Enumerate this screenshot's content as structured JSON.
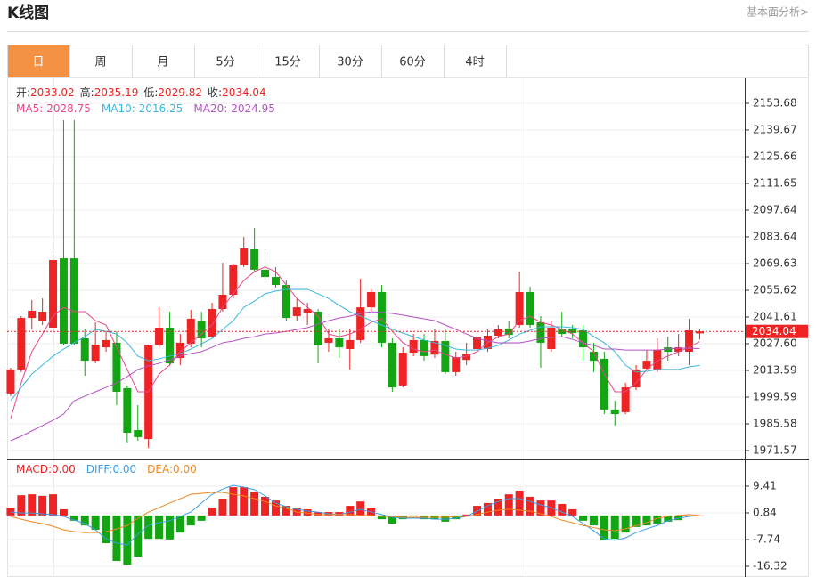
{
  "header": {
    "title": "K线图",
    "link": "基本面分析>"
  },
  "tabs": {
    "items": [
      "日",
      "周",
      "月",
      "5分",
      "15分",
      "30分",
      "60分",
      "4时"
    ],
    "active": 0
  },
  "chart_data": [
    {
      "type": "candlestick",
      "ohlc_labels": [
        "开:",
        "高:",
        "低:",
        "收:"
      ],
      "up_color": "#ee2323",
      "down_color": "#14a514",
      "open": [
        2001.5,
        2014.1,
        2041.1,
        2039.7,
        2036.0,
        2072.4,
        2072.4,
        2030.4,
        2018.7,
        2025.7,
        2028.1,
        2004.3,
        1982.3,
        1977.6,
        2027.1,
        2036.0,
        2020.1,
        2027.6,
        2039.7,
        2031.3,
        2045.8,
        2053.3,
        2068.7,
        2077.1,
        2066.4,
        2062.6,
        2058.4,
        2042.1,
        2043.5,
        2044.4,
        2028.1,
        2030.4,
        2024.8,
        2029.5,
        2046.7,
        2054.7,
        2028.1,
        2005.7,
        2022.9,
        2029.5,
        2021.9,
        2029.0,
        2012.7,
        2019.1,
        2024.8,
        2024.8,
        2031.8,
        2035.6,
        2037.4,
        2054.7,
        2038.8,
        2024.8,
        2035.1,
        2035.1,
        2034.6,
        2023.4,
        2019.7,
        1993.1,
        1991.7,
        2004.7,
        2014.6,
        2014.1,
        2025.7,
        2023.4,
        2023.4,
        2033.02
      ],
      "high": [
        2015.0,
        2042.1,
        2050.5,
        2051.4,
        2074.3,
        2144.8,
        2144.8,
        2035.1,
        2038.8,
        2034.1,
        2034.1,
        2005.7,
        1995.4,
        2027.1,
        2046.7,
        2044.4,
        2032.7,
        2045.3,
        2044.4,
        2049.1,
        2070.1,
        2069.6,
        2083.6,
        2088.3,
        2075.7,
        2067.8,
        2060.8,
        2051.4,
        2049.1,
        2045.8,
        2035.1,
        2035.1,
        2035.1,
        2061.7,
        2056.1,
        2058.4,
        2030.4,
        2025.7,
        2032.7,
        2032.7,
        2035.1,
        2035.1,
        2023.4,
        2028.1,
        2036.0,
        2035.1,
        2037.4,
        2039.7,
        2065.4,
        2057.5,
        2042.1,
        2039.7,
        2044.4,
        2037.4,
        2037.4,
        2028.1,
        2023.4,
        1997.7,
        2007.1,
        2016.4,
        2024.3,
        2030.4,
        2031.3,
        2032.7,
        2040.7,
        2035.19
      ],
      "low": [
        2000.1,
        2012.7,
        2035.1,
        2037.4,
        2035.1,
        2026.7,
        2026.7,
        2010.8,
        2017.3,
        2023.4,
        1995.4,
        1975.8,
        1976.7,
        1972.9,
        2025.7,
        2016.4,
        2016.4,
        2025.7,
        2025.7,
        2030.4,
        2044.4,
        2051.4,
        2067.8,
        2065.0,
        2059.4,
        2057.0,
        2039.7,
        2039.7,
        2037.4,
        2017.3,
        2023.4,
        2020.1,
        2014.1,
        2028.1,
        2044.4,
        2025.7,
        2002.4,
        2004.7,
        2021.1,
        2018.7,
        2020.1,
        2011.7,
        2010.8,
        2016.4,
        2023.4,
        2023.4,
        2030.4,
        2030.4,
        2036.0,
        2036.0,
        2015.0,
        2023.4,
        2031.3,
        2030.4,
        2018.7,
        2012.7,
        1990.7,
        1984.7,
        1990.7,
        2003.3,
        2014.1,
        2012.7,
        2018.7,
        2021.1,
        2016.4,
        2029.82
      ],
      "close": [
        2014.1,
        2041.1,
        2044.9,
        2044.4,
        2071.5,
        2027.6,
        2027.6,
        2018.7,
        2027.1,
        2029.5,
        2002.4,
        1980.9,
        1978.6,
        2026.7,
        2036.0,
        2017.3,
        2028.1,
        2040.7,
        2030.4,
        2045.8,
        2053.3,
        2068.7,
        2077.6,
        2066.4,
        2062.6,
        2058.4,
        2041.1,
        2046.7,
        2045.8,
        2026.7,
        2030.4,
        2025.7,
        2029.5,
        2046.7,
        2054.7,
        2028.1,
        2004.7,
        2022.9,
        2029.5,
        2021.1,
        2029.0,
        2012.7,
        2020.6,
        2022.4,
        2031.3,
        2031.8,
        2035.1,
        2032.2,
        2054.7,
        2037.4,
        2028.1,
        2036.0,
        2032.7,
        2033.2,
        2025.7,
        2018.7,
        1993.1,
        1990.7,
        2004.7,
        2014.1,
        2018.7,
        2024.3,
        2023.4,
        2025.7,
        2034.6,
        2034.04
      ],
      "series": [
        {
          "name": "MA5:",
          "color": "#e8478b",
          "values": [
            1988.4,
            2007.1,
            2023.4,
            2032.7,
            2042.1,
            2046.7,
            2044.4,
            2044.4,
            2039.7,
            2037.4,
            2025.7,
            2014.1,
            2002.4,
            2002.4,
            2011.7,
            2016.4,
            2023.4,
            2028.1,
            2032.7,
            2037.4,
            2046.7,
            2053.8,
            2060.8,
            2065.4,
            2067.8,
            2065.4,
            2058.4,
            2051.4,
            2046.7,
            2042.1,
            2032.7,
            2031.3,
            2032.7,
            2035.1,
            2038.8,
            2040.7,
            2034.1,
            2028.1,
            2024.8,
            2023.4,
            2024.3,
            2022.0,
            2020.1,
            2021.1,
            2023.4,
            2028.1,
            2031.3,
            2032.7,
            2039.7,
            2042.1,
            2038.8,
            2037.4,
            2035.1,
            2032.7,
            2028.1,
            2023.4,
            2011.7,
            2002.4,
            2002.4,
            2007.1,
            2014.1,
            2018.7,
            2021.1,
            2023.4,
            2025.7,
            2028.75
          ]
        },
        {
          "name": "MA10:",
          "color": "#3ab8dc",
          "values": [
            1997.7,
            2004.7,
            2011.7,
            2016.4,
            2021.1,
            2024.8,
            2028.1,
            2031.3,
            2035.1,
            2034.1,
            2032.7,
            2028.1,
            2021.1,
            2018.7,
            2019.7,
            2021.1,
            2022.5,
            2024.8,
            2027.6,
            2030.4,
            2035.1,
            2039.7,
            2046.7,
            2050.0,
            2053.8,
            2055.2,
            2056.1,
            2056.1,
            2056.1,
            2053.8,
            2051.4,
            2047.7,
            2044.4,
            2042.1,
            2039.7,
            2037.4,
            2035.1,
            2033.2,
            2031.3,
            2029.5,
            2028.1,
            2026.7,
            2024.8,
            2024.3,
            2024.3,
            2025.2,
            2026.7,
            2029.5,
            2032.7,
            2034.6,
            2036.5,
            2036.5,
            2036.5,
            2036.0,
            2035.1,
            2031.3,
            2028.1,
            2023.4,
            2016.4,
            2012.7,
            2013.1,
            2014.1,
            2014.1,
            2014.1,
            2015.5,
            2016.25
          ]
        },
        {
          "name": "MA20:",
          "color": "#b452c4",
          "values": [
            1976.7,
            1979.1,
            1981.9,
            1984.7,
            1987.5,
            1990.7,
            1997.7,
            2000.1,
            2002.4,
            2004.7,
            2007.1,
            2010.3,
            2014.1,
            2016.0,
            2017.3,
            2019.2,
            2021.1,
            2022.5,
            2023.4,
            2025.7,
            2028.1,
            2029.0,
            2030.4,
            2031.3,
            2032.7,
            2033.2,
            2034.1,
            2035.1,
            2036.0,
            2037.9,
            2039.7,
            2041.1,
            2042.1,
            2043.5,
            2044.4,
            2044.0,
            2043.5,
            2042.6,
            2041.6,
            2040.7,
            2039.7,
            2037.4,
            2035.1,
            2032.7,
            2030.4,
            2029.0,
            2028.1,
            2028.1,
            2028.1,
            2029.0,
            2030.4,
            2030.9,
            2031.3,
            2029.9,
            2028.1,
            2026.7,
            2024.8,
            2024.8,
            2024.3,
            2024.3,
            2024.3,
            2024.3,
            2024.8,
            2025.2,
            2025.2,
            2024.95
          ]
        }
      ],
      "ylim": [
        1967.37,
        2166.75
      ],
      "yticks": [
        2153.68,
        2139.67,
        2125.66,
        2111.65,
        2097.64,
        2083.64,
        2069.63,
        2055.62,
        2041.61,
        {
          "value": 2027.6,
          "label": "2027.60"
        },
        2013.59,
        1999.59,
        1985.58,
        1971.57
      ],
      "grid": true,
      "last_price_line": true
    },
    {
      "type": "macd",
      "series": [
        {
          "name": "MACD:",
          "color": "#ee2323",
          "current_label": "0.00",
          "values": [
            2.5,
            6.5,
            6.8,
            6.3,
            6.8,
            2.0,
            -1.7,
            -3.2,
            -4.6,
            -8.9,
            -14.6,
            -15.8,
            -13.2,
            -7.5,
            -7.5,
            -7.7,
            -5.5,
            -3.2,
            -1.7,
            2.5,
            5.4,
            9.1,
            9.1,
            7.7,
            6.0,
            4.8,
            3.1,
            2.5,
            2.0,
            1.1,
            1.1,
            1.1,
            3.1,
            4.5,
            2.5,
            -1.2,
            -2.6,
            -1.2,
            -0.3,
            -1.2,
            -1.2,
            -2.0,
            -1.2,
            0.3,
            3.1,
            4.0,
            5.4,
            6.8,
            8.0,
            6.0,
            4.8,
            4.8,
            3.7,
            2.0,
            -1.7,
            -3.2,
            -8.0,
            -7.5,
            -5.5,
            -3.7,
            -3.2,
            -2.6,
            -2.0,
            -1.5,
            -0.3,
            0
          ]
        },
        {
          "name": "DIFF:",
          "color": "#3b9ee6",
          "current_label": "0.00",
          "values": [
            1.1,
            0.8,
            0.8,
            0.5,
            0.3,
            -0.3,
            -1.5,
            -2.6,
            -4.6,
            -7.5,
            -8.9,
            -9.5,
            -6.0,
            -3.2,
            -2.3,
            -1.7,
            -0.3,
            1.1,
            4.0,
            6.8,
            8.5,
            9.7,
            9.1,
            8.3,
            6.3,
            4.0,
            2.8,
            2.0,
            1.4,
            1.1,
            0.5,
            0.3,
            1.1,
            2.0,
            1.1,
            0.3,
            -0.6,
            -0.9,
            -0.9,
            -0.9,
            -1.2,
            -1.2,
            -0.9,
            -0.3,
            1.4,
            3.1,
            4.5,
            5.4,
            5.4,
            4.5,
            3.4,
            2.5,
            1.1,
            -0.3,
            -2.6,
            -4.9,
            -7.5,
            -8.0,
            -7.2,
            -5.5,
            -4.3,
            -3.2,
            -1.7,
            -0.9,
            -0.3,
            0
          ]
        },
        {
          "name": "DEA:",
          "color": "#f0871f",
          "current_label": "0.00",
          "values": [
            -0.3,
            -1.2,
            -2.0,
            -2.6,
            -3.5,
            -4.6,
            -5.2,
            -5.5,
            -5.5,
            -5.2,
            -4.3,
            -3.2,
            -0.9,
            1.1,
            2.5,
            4.0,
            5.4,
            6.8,
            7.1,
            7.4,
            7.4,
            6.8,
            6.3,
            5.4,
            4.5,
            3.1,
            2.3,
            1.1,
            0.8,
            0.3,
            0.3,
            0.3,
            0.3,
            0,
            0,
            -0.3,
            -0.3,
            -0.6,
            -0.6,
            -0.6,
            -0.6,
            -0.6,
            -0.3,
            -0.3,
            0.3,
            1.1,
            1.7,
            2.0,
            1.7,
            1.4,
            0.5,
            -0.3,
            -1.5,
            -2.3,
            -3.2,
            -3.9,
            -4.6,
            -4.9,
            -4.3,
            -3.2,
            -2.3,
            -0.9,
            -0.3,
            0,
            0.3,
            0
          ]
        }
      ],
      "ylim": [
        -19.75,
        17.7
      ],
      "yticks": [
        9.41,
        0.84,
        -7.74,
        -16.32
      ],
      "grid": true
    }
  ]
}
